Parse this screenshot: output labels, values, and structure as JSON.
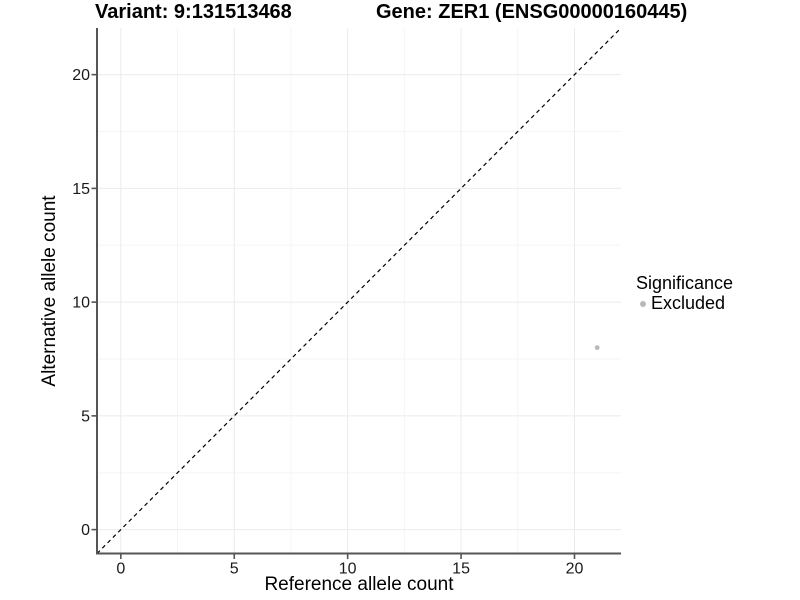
{
  "title": {
    "variant": "Variant: 9:131513468",
    "gene": "Gene: ZER1 (ENSG00000160445)"
  },
  "chart_data": {
    "type": "scatter",
    "title": "Variant: 9:131513468  |  Gene: ZER1 (ENSG00000160445)",
    "xlabel": "Reference allele count",
    "ylabel": "Alternative allele count",
    "x_ticks": [
      0,
      5,
      10,
      15,
      20
    ],
    "y_ticks": [
      0,
      5,
      10,
      15,
      20
    ],
    "x_minor_gridlines": [
      2.5,
      7.5,
      12.5,
      17.5
    ],
    "y_minor_gridlines": [
      2.5,
      7.5,
      12.5,
      17.5
    ],
    "x_range": [
      -1.05,
      22.05
    ],
    "y_range": [
      -1.05,
      22.05
    ],
    "grid": true,
    "legend_position": "right",
    "points": [
      {
        "x": 21,
        "y": 8,
        "significance": "Excluded"
      }
    ],
    "reference_line": {
      "kind": "identity y=x",
      "linetype": "dashed",
      "start": -1.05,
      "end": 22.05
    },
    "legend": {
      "title": "Significance",
      "items": [
        {
          "label": "Excluded",
          "color": "#b9b9b9"
        }
      ]
    },
    "colors": {
      "point": "#b9b9b9",
      "grid_major": "#ebebeb",
      "grid_minor": "#f5f5f5",
      "axis": "#555555",
      "tick_label": "#1a1a1a",
      "dashed_line": "#000000"
    }
  }
}
